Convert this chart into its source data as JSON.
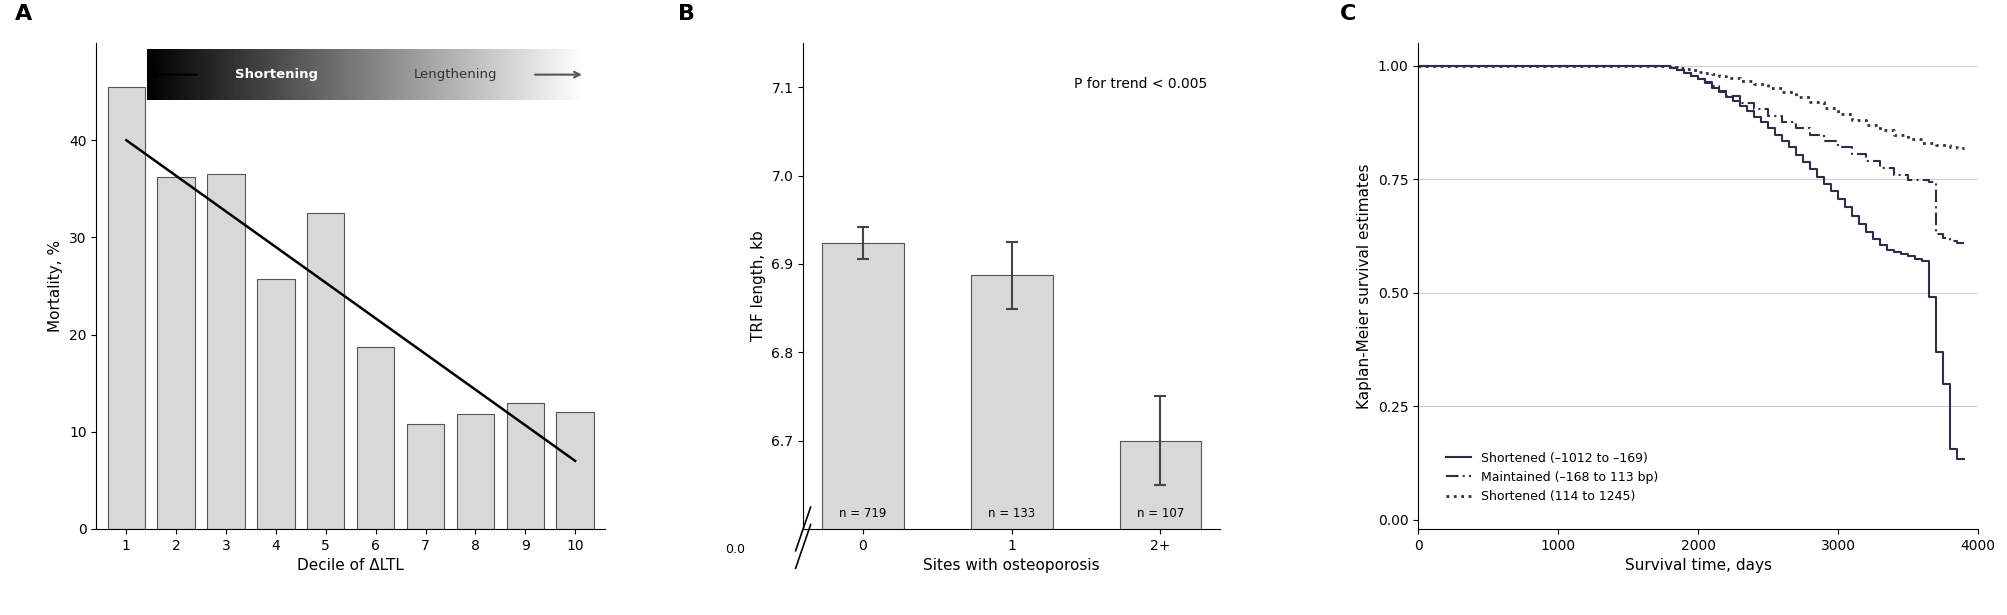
{
  "panel_A": {
    "deciles": [
      1,
      2,
      3,
      4,
      5,
      6,
      7,
      8,
      9,
      10
    ],
    "mortality": [
      45.5,
      36.2,
      36.5,
      25.7,
      32.5,
      18.7,
      10.8,
      11.8,
      13.0,
      12.0
    ],
    "bar_color": "#d8d8d8",
    "bar_edgecolor": "#555555",
    "trend_x": [
      1,
      10
    ],
    "trend_y": [
      40.0,
      7.0
    ],
    "xlabel": "Decile of ΔLTL",
    "ylabel": "Mortality, %",
    "ylim": [
      0,
      50
    ],
    "yticks": [
      0,
      10,
      20,
      30,
      40
    ],
    "arrow_label_left": "Shortening",
    "arrow_label_right": "Lengthening"
  },
  "panel_B": {
    "categories": [
      "0",
      "1",
      "2+"
    ],
    "values": [
      6.924,
      6.887,
      6.7
    ],
    "errors": [
      0.018,
      0.038,
      0.05
    ],
    "ns": [
      "n = 719",
      "n = 133",
      "n = 107"
    ],
    "bar_color": "#d8d8d8",
    "bar_edgecolor": "#555555",
    "xlabel": "Sites with osteoporosis",
    "ylabel": "TRF length, kb",
    "ylim_top": 7.15,
    "ylim_bottom": 6.6,
    "yticks": [
      6.7,
      6.8,
      6.9,
      7.0,
      7.1
    ],
    "ptext": "P for trend < 0.005"
  },
  "panel_C": {
    "xlabel": "Survival time, days",
    "ylabel": "Kaplan-Meier survival estimates",
    "xlim": [
      0,
      4000
    ],
    "ylim": [
      -0.02,
      1.05
    ],
    "yticks": [
      0.0,
      0.25,
      0.5,
      0.75,
      1.0
    ],
    "xticks": [
      0,
      1000,
      2000,
      3000,
      4000
    ],
    "line_color": "#2e2e4a",
    "legend_entries": [
      {
        "label": "Shortened (–1012 to –169)",
        "linestyle": "solid"
      },
      {
        "label": "Maintained (–168 to 113 bp)",
        "linestyle": "dashdot"
      },
      {
        "label": "Shortened (114 to 1245)",
        "linestyle": "dotted"
      }
    ],
    "curve1_x": [
      0,
      500,
      1000,
      1500,
      1750,
      1800,
      1850,
      1900,
      1950,
      2000,
      2050,
      2100,
      2150,
      2200,
      2250,
      2300,
      2350,
      2400,
      2450,
      2500,
      2550,
      2600,
      2650,
      2700,
      2750,
      2800,
      2850,
      2900,
      2950,
      3000,
      3050,
      3100,
      3150,
      3200,
      3250,
      3300,
      3350,
      3400,
      3450,
      3500,
      3550,
      3600,
      3650,
      3700,
      3750,
      3800,
      3850,
      3900
    ],
    "curve1_y": [
      1.0,
      1.0,
      1.0,
      1.0,
      1.0,
      0.995,
      0.99,
      0.985,
      0.977,
      0.97,
      0.962,
      0.952,
      0.942,
      0.932,
      0.922,
      0.912,
      0.9,
      0.888,
      0.876,
      0.862,
      0.848,
      0.834,
      0.82,
      0.804,
      0.788,
      0.772,
      0.756,
      0.74,
      0.724,
      0.706,
      0.688,
      0.67,
      0.652,
      0.634,
      0.618,
      0.605,
      0.595,
      0.59,
      0.585,
      0.58,
      0.575,
      0.57,
      0.49,
      0.37,
      0.3,
      0.155,
      0.135,
      0.135
    ],
    "curve2_x": [
      0,
      500,
      1000,
      1500,
      1750,
      1800,
      1850,
      1900,
      1950,
      2000,
      2050,
      2100,
      2150,
      2200,
      2300,
      2400,
      2500,
      2600,
      2700,
      2800,
      2900,
      3000,
      3100,
      3200,
      3300,
      3400,
      3500,
      3600,
      3650,
      3700,
      3750,
      3800,
      3850,
      3900
    ],
    "curve2_y": [
      1.0,
      1.0,
      1.0,
      1.0,
      1.0,
      0.995,
      0.99,
      0.984,
      0.977,
      0.971,
      0.964,
      0.955,
      0.944,
      0.933,
      0.918,
      0.904,
      0.89,
      0.876,
      0.862,
      0.848,
      0.834,
      0.82,
      0.806,
      0.79,
      0.774,
      0.76,
      0.748,
      0.748,
      0.745,
      0.63,
      0.62,
      0.615,
      0.61,
      0.61
    ],
    "curve3_x": [
      0,
      500,
      1000,
      1500,
      1750,
      1800,
      1850,
      1900,
      1950,
      2000,
      2050,
      2100,
      2150,
      2200,
      2300,
      2400,
      2500,
      2600,
      2700,
      2800,
      2900,
      3000,
      3100,
      3200,
      3300,
      3400,
      3500,
      3600,
      3700,
      3800,
      3850,
      3900
    ],
    "curve3_y": [
      1.0,
      1.0,
      1.0,
      1.0,
      1.0,
      0.998,
      0.996,
      0.993,
      0.99,
      0.987,
      0.984,
      0.981,
      0.978,
      0.974,
      0.967,
      0.96,
      0.952,
      0.943,
      0.932,
      0.92,
      0.907,
      0.894,
      0.881,
      0.869,
      0.858,
      0.848,
      0.838,
      0.83,
      0.825,
      0.82,
      0.818,
      0.818
    ]
  }
}
